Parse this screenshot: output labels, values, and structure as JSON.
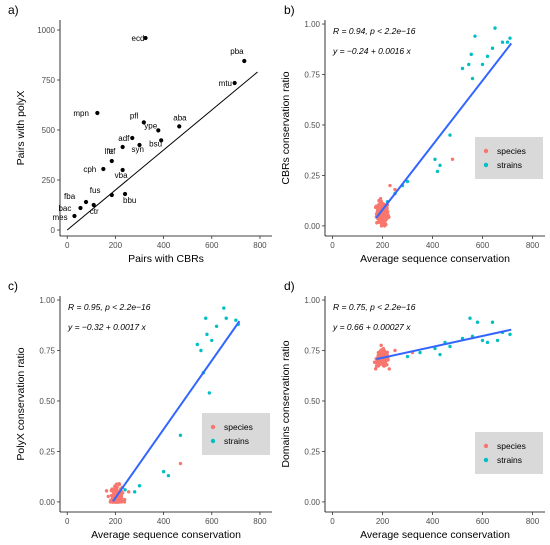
{
  "colors": {
    "species": "#F8766D",
    "strains": "#00BFC4",
    "fit": "#3366FF",
    "black": "#000000",
    "legend_bg": "#D9D9D9"
  },
  "chart_data": [
    {
      "id": "a",
      "panel_label": "a)",
      "type": "scatter",
      "xlabel": "Pairs with CBRs",
      "ylabel": "Pairs with polyX",
      "xlim": [
        -30,
        850
      ],
      "ylim": [
        -30,
        1050
      ],
      "xticks": [
        0,
        200,
        400,
        600,
        800
      ],
      "yticks": [
        0,
        250,
        500,
        750,
        1000
      ],
      "grid": false,
      "fit_line": {
        "intercept": 0,
        "slope": 1.0
      },
      "points": [
        {
          "label": "ecd",
          "x": 325,
          "y": 960
        },
        {
          "label": "pba",
          "x": 735,
          "y": 845
        },
        {
          "label": "mtu",
          "x": 695,
          "y": 735
        },
        {
          "label": "mpn",
          "x": 125,
          "y": 585
        },
        {
          "label": "pfl",
          "x": 318,
          "y": 538
        },
        {
          "label": "aba",
          "x": 465,
          "y": 518
        },
        {
          "label": "ype",
          "x": 378,
          "y": 498
        },
        {
          "label": "adf",
          "x": 270,
          "y": 460
        },
        {
          "label": "bsu",
          "x": 390,
          "y": 448
        },
        {
          "label": "syn",
          "x": 300,
          "y": 425
        },
        {
          "label": "ttf",
          "x": 230,
          "y": 415
        },
        {
          "label": "lfe",
          "x": 185,
          "y": 345
        },
        {
          "label": "cph",
          "x": 150,
          "y": 305
        },
        {
          "label": "vba",
          "x": 230,
          "y": 300
        },
        {
          "label": "fus",
          "x": 185,
          "y": 175
        },
        {
          "label": "bbu",
          "x": 240,
          "y": 180
        },
        {
          "label": "fba",
          "x": 78,
          "y": 140
        },
        {
          "label": "bac",
          "x": 55,
          "y": 110
        },
        {
          "label": "ctr",
          "x": 110,
          "y": 125
        },
        {
          "label": "mes",
          "x": 30,
          "y": 70
        }
      ]
    },
    {
      "id": "b",
      "panel_label": "b)",
      "type": "scatter",
      "xlabel": "Average sequence conservation",
      "ylabel": "CBRs conservation ratio",
      "xlim": [
        -30,
        850
      ],
      "ylim": [
        -0.05,
        1.02
      ],
      "xticks": [
        0,
        200,
        400,
        600,
        800
      ],
      "yticks": [
        0.0,
        0.25,
        0.5,
        0.75,
        1.0
      ],
      "ytick_labels": [
        "0.00",
        "0.25",
        "0.50",
        "0.75",
        "1.00"
      ],
      "grid": false,
      "annotation_r": "R = 0.94, p < 2.2e−16",
      "annotation_eq": "y = −0.24 + 0.0016 x",
      "fit_line": {
        "intercept": -0.24,
        "slope": 0.0016,
        "x_range": [
          175,
          715
        ]
      },
      "legend": {
        "placement": "right-middle",
        "entries": [
          "species",
          "strains"
        ]
      },
      "strains": [
        [
          220,
          0.12
        ],
        [
          250,
          0.16
        ],
        [
          280,
          0.2
        ],
        [
          300,
          0.22
        ],
        [
          410,
          0.33
        ],
        [
          430,
          0.3
        ],
        [
          420,
          0.27
        ],
        [
          470,
          0.45
        ],
        [
          520,
          0.78
        ],
        [
          545,
          0.8
        ],
        [
          560,
          0.73
        ],
        [
          570,
          0.94
        ],
        [
          600,
          0.8
        ],
        [
          620,
          0.84
        ],
        [
          650,
          0.98
        ],
        [
          680,
          0.91
        ],
        [
          700,
          0.91
        ],
        [
          710,
          0.93
        ],
        [
          555,
          0.85
        ],
        [
          640,
          0.88
        ]
      ],
      "species_cluster": {
        "x_center": 200,
        "y_center": 0.06,
        "count": 150
      },
      "species_extra": [
        [
          480,
          0.33
        ],
        [
          250,
          0.18
        ],
        [
          230,
          0.2
        ]
      ]
    },
    {
      "id": "c",
      "panel_label": "c)",
      "type": "scatter",
      "xlabel": "Average sequence conservation",
      "ylabel": "PolyX conservation ratio",
      "xlim": [
        -30,
        850
      ],
      "ylim": [
        -0.05,
        1.02
      ],
      "xticks": [
        0,
        200,
        400,
        600,
        800
      ],
      "yticks": [
        0.0,
        0.25,
        0.5,
        0.75,
        1.0
      ],
      "ytick_labels": [
        "0.00",
        "0.25",
        "0.50",
        "0.75",
        "1.00"
      ],
      "grid": false,
      "annotation_r": "R = 0.95, p < 2.2e−16",
      "annotation_eq": "y = −0.32 + 0.0017 x",
      "fit_line": {
        "intercept": -0.32,
        "slope": 0.0017,
        "x_range": [
          190,
          715
        ]
      },
      "legend": {
        "placement": "right-middle",
        "entries": [
          "species",
          "strains"
        ]
      },
      "strains": [
        [
          240,
          0.06
        ],
        [
          280,
          0.05
        ],
        [
          300,
          0.08
        ],
        [
          400,
          0.15
        ],
        [
          420,
          0.13
        ],
        [
          470,
          0.33
        ],
        [
          540,
          0.78
        ],
        [
          555,
          0.75
        ],
        [
          565,
          0.64
        ],
        [
          575,
          0.91
        ],
        [
          590,
          0.54
        ],
        [
          600,
          0.8
        ],
        [
          620,
          0.87
        ],
        [
          650,
          0.96
        ],
        [
          700,
          0.9
        ],
        [
          710,
          0.88
        ],
        [
          580,
          0.83
        ],
        [
          660,
          0.91
        ]
      ],
      "species_cluster": {
        "x_center": 205,
        "y_center": 0.02,
        "count": 150
      },
      "species_extra": [
        [
          470,
          0.19
        ],
        [
          255,
          0.05
        ]
      ]
    },
    {
      "id": "d",
      "panel_label": "d)",
      "type": "scatter",
      "xlabel": "Average sequence conservation",
      "ylabel": "Domains conservation ratio",
      "xlim": [
        -30,
        850
      ],
      "ylim": [
        -0.05,
        1.02
      ],
      "xticks": [
        0,
        200,
        400,
        600,
        800
      ],
      "yticks": [
        0.0,
        0.25,
        0.5,
        0.75,
        1.0
      ],
      "ytick_labels": [
        "0.00",
        "0.25",
        "0.50",
        "0.75",
        "1.00"
      ],
      "grid": false,
      "annotation_r": "R = 0.75, p < 2.2e−16",
      "annotation_eq": "y = 0.66 + 0.00027 x",
      "fit_line": {
        "intercept": 0.66,
        "slope": 0.00027,
        "x_range": [
          175,
          715
        ]
      },
      "legend": {
        "placement": "right-bottom",
        "entries": [
          "species",
          "strains"
        ]
      },
      "strains": [
        [
          410,
          0.76
        ],
        [
          430,
          0.73
        ],
        [
          450,
          0.79
        ],
        [
          470,
          0.77
        ],
        [
          520,
          0.81
        ],
        [
          550,
          0.91
        ],
        [
          560,
          0.82
        ],
        [
          580,
          0.89
        ],
        [
          600,
          0.8
        ],
        [
          620,
          0.79
        ],
        [
          640,
          0.89
        ],
        [
          660,
          0.8
        ],
        [
          680,
          0.84
        ],
        [
          710,
          0.83
        ],
        [
          300,
          0.72
        ],
        [
          350,
          0.74
        ]
      ],
      "species_cluster": {
        "x_center": 200,
        "y_center": 0.71,
        "count": 150
      },
      "species_extra": [
        [
          250,
          0.75
        ],
        [
          320,
          0.74
        ]
      ]
    }
  ]
}
